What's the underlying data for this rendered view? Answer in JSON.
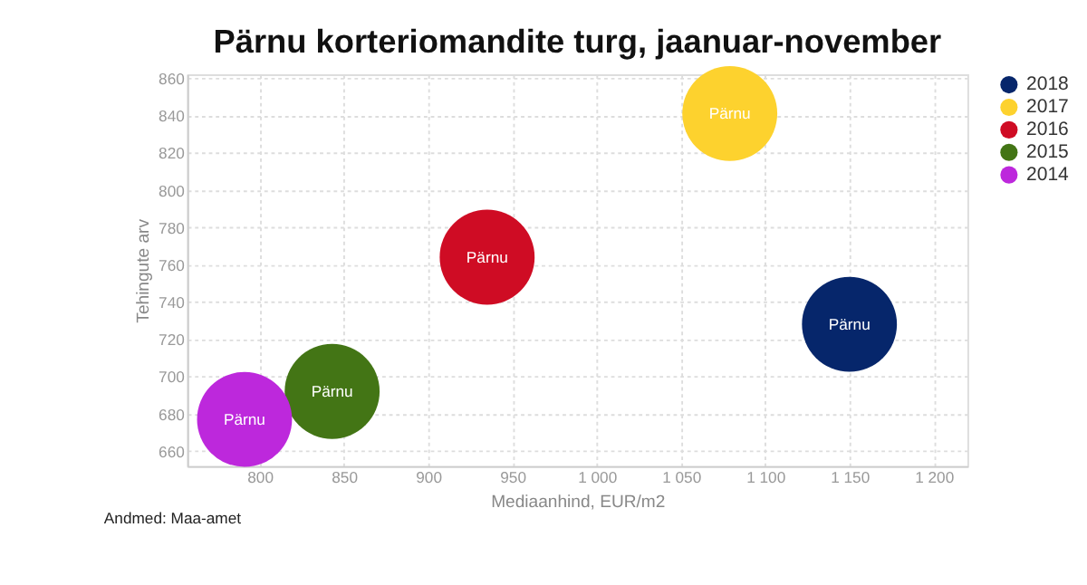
{
  "chart_data": {
    "type": "bubble",
    "title": "Pärnu korteriomandite turg, jaanuar-november",
    "xlabel": "Mediaanhind, EUR/m2",
    "ylabel": "Tehingute arv",
    "series": [
      {
        "name": "2018",
        "color": "#06266b",
        "x": [
          1150
        ],
        "values": [
          728
        ],
        "sizes": [
          1
        ]
      },
      {
        "name": "2017",
        "color": "#fdd22e",
        "x": [
          1079
        ],
        "values": [
          841
        ],
        "sizes": [
          1
        ]
      },
      {
        "name": "2016",
        "color": "#cf0c24",
        "x": [
          935
        ],
        "values": [
          764
        ],
        "sizes": [
          1
        ]
      },
      {
        "name": "2015",
        "color": "#437515",
        "x": [
          843
        ],
        "values": [
          692
        ],
        "sizes": [
          1
        ]
      },
      {
        "name": "2014",
        "color": "#bd28dc",
        "x": [
          791
        ],
        "values": [
          677
        ],
        "sizes": [
          1
        ]
      }
    ],
    "xlim": [
      757,
      1220
    ],
    "ylim": [
      652,
      862
    ],
    "xticks": [
      800,
      850,
      900,
      950,
      {
        "value": 1000,
        "label": "1 000"
      },
      {
        "value": 1050,
        "label": "1 050"
      },
      {
        "value": 1100,
        "label": "1 100"
      },
      {
        "value": 1150,
        "label": "1 150"
      },
      {
        "value": 1200,
        "label": "1 200"
      }
    ],
    "yticks": [
      660,
      680,
      700,
      720,
      740,
      760,
      780,
      800,
      820,
      840,
      860
    ],
    "grid": true,
    "legend": "right",
    "annotations": [
      {
        "text": "Pärnu",
        "x": 1150,
        "y": 728
      },
      {
        "text": "Pärnu",
        "x": 1079,
        "y": 841
      },
      {
        "text": "Pärnu",
        "x": 935,
        "y": 764
      },
      {
        "text": "Pärnu",
        "x": 843,
        "y": 692
      },
      {
        "text": "Pärnu",
        "x": 791,
        "y": 677
      },
      "Andmed: Maa-amet"
    ]
  }
}
